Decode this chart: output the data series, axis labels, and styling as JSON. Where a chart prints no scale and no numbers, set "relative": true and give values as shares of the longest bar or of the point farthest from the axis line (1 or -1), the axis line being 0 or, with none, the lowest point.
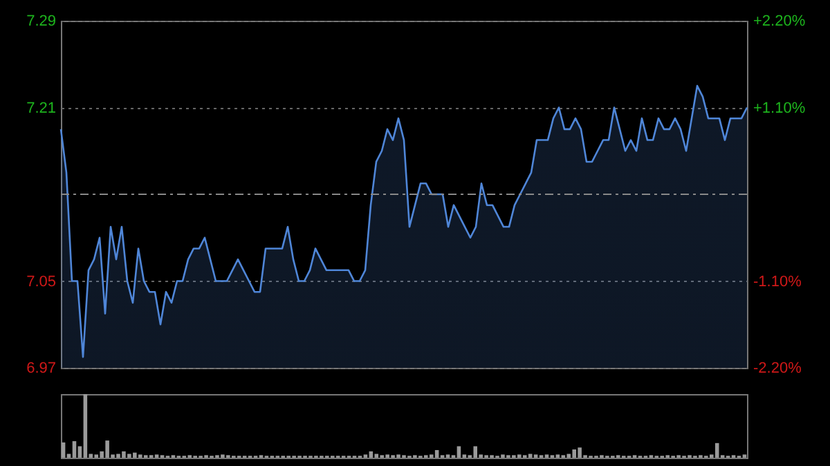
{
  "chart_data": [
    {
      "type": "area",
      "categories": [
        null,
        null,
        null,
        null,
        null,
        null,
        null,
        null,
        null,
        null,
        null,
        null,
        null,
        null,
        null,
        null,
        null,
        null,
        null,
        null,
        null,
        null,
        null,
        null,
        null,
        null,
        null,
        null,
        null,
        null,
        null,
        null,
        null,
        null,
        null,
        null,
        null,
        null,
        null,
        null,
        null,
        null,
        null,
        null,
        null,
        null,
        null,
        null,
        null,
        null,
        null,
        null,
        null,
        null,
        null,
        null,
        null,
        null,
        null,
        null,
        null,
        null,
        null,
        null,
        null,
        null,
        null,
        null,
        null,
        null,
        null,
        null,
        null,
        null,
        null,
        null,
        null,
        null,
        null,
        null,
        null,
        null,
        null,
        null,
        null,
        null,
        null,
        null,
        null,
        null,
        null,
        null,
        null,
        null,
        null,
        null,
        null,
        null,
        null,
        null,
        null,
        null,
        null,
        null,
        null,
        null,
        null,
        null,
        null,
        null,
        null,
        null,
        null,
        null,
        null,
        null,
        null,
        null,
        null,
        null,
        null,
        null,
        null,
        null,
        null
      ],
      "series": [
        {
          "color": "#4f86d8",
          "values": [
            7.19,
            7.15,
            7.05,
            7.05,
            6.98,
            7.06,
            7.07,
            7.09,
            7.02,
            7.1,
            7.07,
            7.1,
            7.05,
            7.03,
            7.08,
            7.05,
            7.04,
            7.04,
            7.01,
            7.04,
            7.03,
            7.05,
            7.05,
            7.07,
            7.08,
            7.08,
            7.09,
            7.07,
            7.05,
            7.05,
            7.05,
            7.06,
            7.07,
            7.06,
            7.05,
            7.04,
            7.04,
            7.08,
            7.08,
            7.08,
            7.08,
            7.1,
            7.07,
            7.05,
            7.05,
            7.06,
            7.08,
            7.07,
            7.06,
            7.06,
            7.06,
            7.06,
            7.06,
            7.05,
            7.05,
            7.06,
            7.12,
            7.16,
            7.17,
            7.19,
            7.18,
            7.2,
            7.18,
            7.1,
            7.12,
            7.14,
            7.14,
            7.13,
            7.13,
            7.13,
            7.1,
            7.12,
            7.11,
            7.1,
            7.09,
            7.1,
            7.14,
            7.12,
            7.12,
            7.11,
            7.1,
            7.1,
            7.12,
            7.13,
            7.14,
            7.15,
            7.18,
            7.18,
            7.18,
            7.2,
            7.21,
            7.19,
            7.19,
            7.2,
            7.19,
            7.16,
            7.16,
            7.17,
            7.18,
            7.18,
            7.21,
            7.19,
            7.17,
            7.18,
            7.17,
            7.2,
            7.18,
            7.18,
            7.2,
            7.19,
            7.19,
            7.2,
            7.19,
            7.17,
            7.2,
            7.23,
            7.22,
            7.2,
            7.2,
            7.2,
            7.18,
            7.2,
            7.2,
            7.2,
            7.21
          ]
        }
      ],
      "ylim": [
        6.97,
        7.29
      ],
      "yticks": [
        6.97,
        7.05,
        7.21,
        7.29
      ],
      "y2lim": [
        -2.2,
        2.2
      ],
      "y2ticks": [
        {
          "value": -2.2,
          "label": "-2.20%"
        },
        {
          "value": -1.1,
          "label": "-1.10%"
        },
        {
          "value": 1.1,
          "label": "+1.10%"
        },
        {
          "value": 2.2,
          "label": "+2.20%"
        }
      ],
      "ref_lines": [
        {
          "axis": "y",
          "value": 7.13,
          "line_style": "dashed"
        }
      ],
      "grid": "y",
      "legend": false
    },
    {
      "type": "bar",
      "relative": true,
      "categories": [
        null,
        null,
        null,
        null,
        null,
        null,
        null,
        null,
        null,
        null,
        null,
        null,
        null,
        null,
        null,
        null,
        null,
        null,
        null,
        null,
        null,
        null,
        null,
        null,
        null,
        null,
        null,
        null,
        null,
        null,
        null,
        null,
        null,
        null,
        null,
        null,
        null,
        null,
        null,
        null,
        null,
        null,
        null,
        null,
        null,
        null,
        null,
        null,
        null,
        null,
        null,
        null,
        null,
        null,
        null,
        null,
        null,
        null,
        null,
        null,
        null,
        null,
        null,
        null,
        null,
        null,
        null,
        null,
        null,
        null,
        null,
        null,
        null,
        null,
        null,
        null,
        null,
        null,
        null,
        null,
        null,
        null,
        null,
        null,
        null,
        null,
        null,
        null,
        null,
        null,
        null,
        null,
        null,
        null,
        null,
        null,
        null,
        null,
        null,
        null,
        null,
        null,
        null,
        null,
        null,
        null,
        null,
        null,
        null,
        null,
        null,
        null,
        null,
        null,
        null,
        null,
        null,
        null,
        null,
        null,
        null,
        null,
        null,
        null,
        null
      ],
      "series": [
        {
          "color": "#9a9a9a",
          "values": [
            0.24,
            0.06,
            0.26,
            0.18,
            1.0,
            0.06,
            0.05,
            0.1,
            0.27,
            0.05,
            0.06,
            0.1,
            0.06,
            0.08,
            0.05,
            0.04,
            0.04,
            0.05,
            0.04,
            0.03,
            0.04,
            0.03,
            0.03,
            0.04,
            0.03,
            0.03,
            0.04,
            0.03,
            0.04,
            0.05,
            0.04,
            0.03,
            0.03,
            0.03,
            0.03,
            0.03,
            0.04,
            0.03,
            0.03,
            0.03,
            0.03,
            0.03,
            0.03,
            0.03,
            0.03,
            0.03,
            0.03,
            0.03,
            0.03,
            0.03,
            0.03,
            0.03,
            0.03,
            0.03,
            0.03,
            0.05,
            0.1,
            0.06,
            0.04,
            0.05,
            0.04,
            0.05,
            0.04,
            0.03,
            0.04,
            0.03,
            0.04,
            0.05,
            0.12,
            0.04,
            0.05,
            0.04,
            0.18,
            0.05,
            0.04,
            0.18,
            0.05,
            0.04,
            0.04,
            0.03,
            0.05,
            0.04,
            0.04,
            0.05,
            0.04,
            0.06,
            0.05,
            0.04,
            0.05,
            0.04,
            0.05,
            0.04,
            0.06,
            0.13,
            0.16,
            0.04,
            0.03,
            0.03,
            0.04,
            0.03,
            0.03,
            0.04,
            0.03,
            0.03,
            0.04,
            0.03,
            0.03,
            0.04,
            0.03,
            0.03,
            0.04,
            0.03,
            0.04,
            0.03,
            0.04,
            0.03,
            0.04,
            0.03,
            0.05,
            0.23,
            0.04,
            0.03,
            0.04,
            0.03,
            0.05
          ]
        }
      ]
    }
  ]
}
